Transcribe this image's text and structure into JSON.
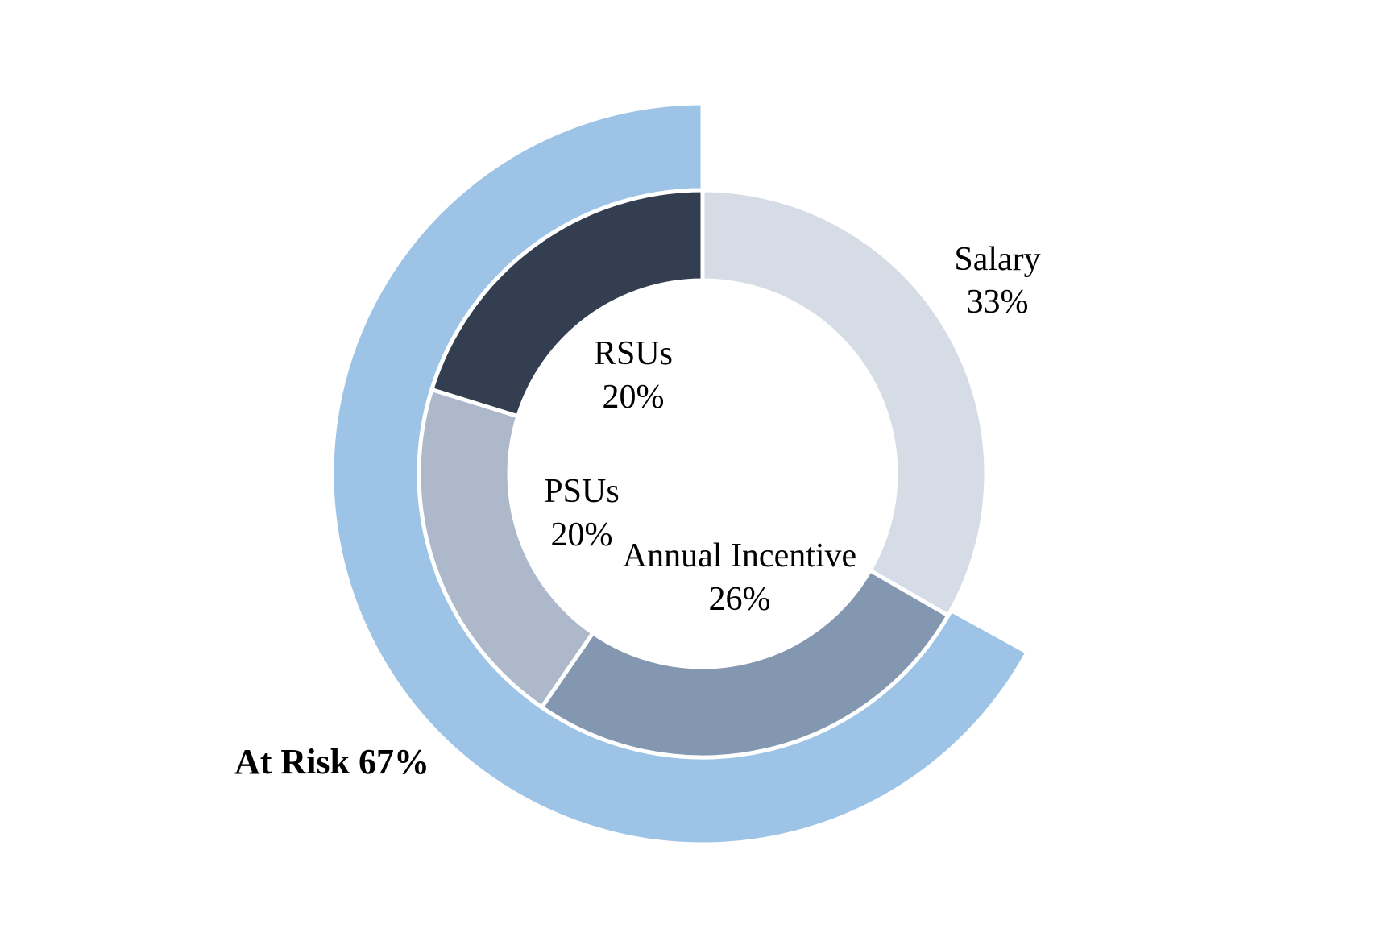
{
  "chart_data": {
    "type": "pie",
    "subtype": "nested-donut",
    "title": "",
    "inner_ring": {
      "slices": [
        {
          "label": "Salary",
          "value": 33,
          "value_label": "33%",
          "color": "#D6DCE5"
        },
        {
          "label": "Annual Incentive",
          "value": 26,
          "value_label": "26%",
          "color": "#8497B0"
        },
        {
          "label": "PSUs",
          "value": 20,
          "value_label": "20%",
          "color": "#ADB9CA"
        },
        {
          "label": "RSUs",
          "value": 20,
          "value_label": "20%",
          "color": "#333F50"
        }
      ]
    },
    "outer_ring": {
      "slices": [
        {
          "label": "At Risk",
          "value": 67,
          "value_label": "67%",
          "text": "At Risk 67%",
          "color": "#9DC3E6"
        }
      ]
    },
    "legend": "none",
    "separator_color": "#FFFFFF"
  }
}
